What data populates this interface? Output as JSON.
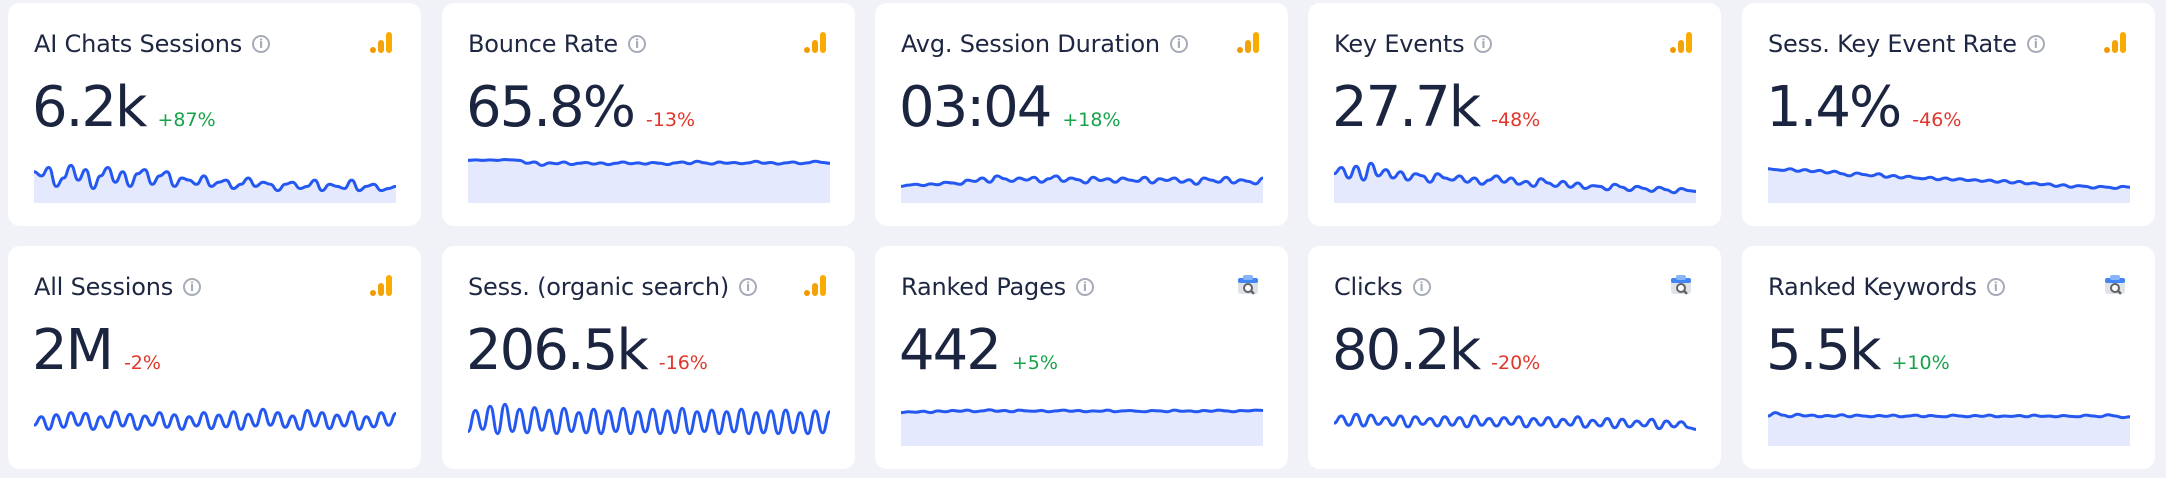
{
  "colors": {
    "background": "#f0f2f7",
    "card": "#ffffff",
    "text": "#1e2742",
    "positive": "#16a34a",
    "negative": "#e0362b",
    "spark_line": "#2458f0",
    "spark_fill": "#e5e9fd",
    "ga_orange": "#f29900",
    "ga_yellow": "#f9ab00"
  },
  "cards": [
    {
      "title": "AI Chats Sessions",
      "value": "6.2k",
      "change": "+87%",
      "trend": "positive",
      "source_icon": "google-analytics-icon",
      "spark": {
        "filled": true,
        "values": [
          0.65,
          0.55,
          0.75,
          0.3,
          0.5,
          0.8,
          0.45,
          0.7,
          0.25,
          0.55,
          0.75,
          0.4,
          0.65,
          0.3,
          0.6,
          0.7,
          0.35,
          0.55,
          0.65,
          0.3,
          0.5,
          0.45,
          0.35,
          0.55,
          0.3,
          0.4,
          0.45,
          0.25,
          0.35,
          0.5,
          0.3,
          0.4,
          0.35,
          0.2,
          0.35,
          0.4,
          0.25,
          0.3,
          0.45,
          0.2,
          0.35,
          0.3,
          0.25,
          0.45,
          0.2,
          0.3,
          0.35,
          0.2,
          0.25,
          0.3
        ]
      }
    },
    {
      "title": "Bounce Rate",
      "value": "65.8%",
      "change": "-13%",
      "trend": "negative",
      "source_icon": "google-analytics-icon",
      "spark": {
        "filled": true,
        "values": [
          0.92,
          0.93,
          0.92,
          0.93,
          0.92,
          0.94,
          0.93,
          0.92,
          0.85,
          0.88,
          0.8,
          0.86,
          0.84,
          0.88,
          0.82,
          0.85,
          0.87,
          0.83,
          0.86,
          0.82,
          0.85,
          0.88,
          0.84,
          0.86,
          0.83,
          0.87,
          0.85,
          0.82,
          0.86,
          0.88,
          0.84,
          0.9,
          0.86,
          0.83,
          0.88,
          0.85,
          0.87,
          0.84,
          0.86,
          0.9,
          0.85,
          0.87,
          0.83,
          0.86,
          0.88,
          0.84,
          0.86,
          0.9,
          0.87,
          0.85
        ]
      }
    },
    {
      "title": "Avg. Session Duration",
      "value": "03:04",
      "change": "+18%",
      "trend": "positive",
      "source_icon": "google-analytics-icon",
      "spark": {
        "filled": true,
        "values": [
          0.3,
          0.33,
          0.35,
          0.32,
          0.36,
          0.34,
          0.4,
          0.38,
          0.35,
          0.45,
          0.42,
          0.5,
          0.4,
          0.55,
          0.48,
          0.42,
          0.5,
          0.45,
          0.52,
          0.4,
          0.48,
          0.55,
          0.42,
          0.5,
          0.46,
          0.38,
          0.52,
          0.44,
          0.48,
          0.4,
          0.5,
          0.45,
          0.42,
          0.52,
          0.38,
          0.48,
          0.44,
          0.5,
          0.4,
          0.46,
          0.35,
          0.5,
          0.45,
          0.4,
          0.52,
          0.38,
          0.46,
          0.42,
          0.36,
          0.5
        ]
      }
    },
    {
      "title": "Key Events",
      "value": "27.7k",
      "change": "-48%",
      "trend": "negative",
      "source_icon": "google-analytics-icon",
      "spark": {
        "filled": true,
        "values": [
          0.6,
          0.75,
          0.5,
          0.78,
          0.45,
          0.85,
          0.55,
          0.7,
          0.5,
          0.65,
          0.45,
          0.6,
          0.55,
          0.4,
          0.6,
          0.5,
          0.45,
          0.55,
          0.4,
          0.5,
          0.35,
          0.45,
          0.55,
          0.4,
          0.5,
          0.35,
          0.42,
          0.3,
          0.48,
          0.38,
          0.3,
          0.42,
          0.28,
          0.38,
          0.25,
          0.32,
          0.3,
          0.22,
          0.35,
          0.28,
          0.2,
          0.3,
          0.25,
          0.18,
          0.28,
          0.22,
          0.15,
          0.25,
          0.2,
          0.18
        ]
      }
    },
    {
      "title": "Sess. Key Event Rate",
      "value": "1.4%",
      "change": "-46%",
      "trend": "negative",
      "source_icon": "google-analytics-icon",
      "spark": {
        "filled": true,
        "values": [
          0.72,
          0.7,
          0.68,
          0.72,
          0.66,
          0.7,
          0.65,
          0.68,
          0.62,
          0.66,
          0.6,
          0.55,
          0.62,
          0.58,
          0.55,
          0.6,
          0.52,
          0.56,
          0.5,
          0.54,
          0.5,
          0.48,
          0.52,
          0.46,
          0.5,
          0.45,
          0.48,
          0.44,
          0.46,
          0.42,
          0.45,
          0.4,
          0.44,
          0.38,
          0.42,
          0.36,
          0.38,
          0.34,
          0.36,
          0.3,
          0.34,
          0.28,
          0.32,
          0.3,
          0.26,
          0.3,
          0.28,
          0.25,
          0.3,
          0.28
        ]
      }
    },
    {
      "title": "All Sessions",
      "value": "2M",
      "change": "-2%",
      "trend": "negative",
      "source_icon": "google-analytics-icon",
      "spark": {
        "filled": false,
        "values": [
          0.4,
          0.6,
          0.3,
          0.65,
          0.35,
          0.7,
          0.4,
          0.68,
          0.3,
          0.6,
          0.35,
          0.72,
          0.38,
          0.66,
          0.3,
          0.62,
          0.4,
          0.7,
          0.35,
          0.65,
          0.3,
          0.6,
          0.38,
          0.7,
          0.32,
          0.64,
          0.36,
          0.72,
          0.3,
          0.66,
          0.38,
          0.78,
          0.4,
          0.7,
          0.35,
          0.62,
          0.3,
          0.75,
          0.38,
          0.7,
          0.32,
          0.64,
          0.38,
          0.72,
          0.3,
          0.6,
          0.36,
          0.7,
          0.4,
          0.68
        ]
      }
    },
    {
      "title": "Sess. (organic search)",
      "value": "206.5k",
      "change": "-16%",
      "trend": "negative",
      "source_icon": "google-analytics-icon",
      "spark": {
        "filled": false,
        "values": [
          0.25,
          0.75,
          0.3,
          0.85,
          0.2,
          0.9,
          0.25,
          0.78,
          0.22,
          0.82,
          0.28,
          0.76,
          0.2,
          0.8,
          0.25,
          0.7,
          0.22,
          0.78,
          0.2,
          0.74,
          0.25,
          0.8,
          0.2,
          0.72,
          0.24,
          0.78,
          0.2,
          0.74,
          0.22,
          0.8,
          0.2,
          0.72,
          0.25,
          0.76,
          0.2,
          0.72,
          0.24,
          0.78,
          0.2,
          0.7,
          0.22,
          0.74,
          0.2,
          0.76,
          0.22,
          0.7,
          0.2,
          0.74,
          0.22,
          0.72
        ]
      }
    },
    {
      "title": "Ranked Pages",
      "value": "442",
      "change": "+5%",
      "trend": "positive",
      "source_icon": "google-search-console-icon",
      "spark": {
        "filled": true,
        "values": [
          0.7,
          0.72,
          0.71,
          0.73,
          0.7,
          0.74,
          0.72,
          0.75,
          0.73,
          0.76,
          0.72,
          0.74,
          0.77,
          0.73,
          0.75,
          0.72,
          0.76,
          0.74,
          0.73,
          0.75,
          0.72,
          0.74,
          0.76,
          0.73,
          0.75,
          0.72,
          0.74,
          0.73,
          0.76,
          0.72,
          0.74,
          0.75,
          0.73,
          0.72,
          0.75,
          0.74,
          0.72,
          0.76,
          0.73,
          0.74,
          0.72,
          0.75,
          0.73,
          0.76,
          0.74,
          0.72,
          0.75,
          0.74,
          0.76,
          0.75
        ]
      }
    },
    {
      "title": "Clicks",
      "value": "80.2k",
      "change": "-20%",
      "trend": "negative",
      "source_icon": "google-search-console-icon",
      "spark": {
        "filled": false,
        "values": [
          0.45,
          0.62,
          0.4,
          0.66,
          0.38,
          0.64,
          0.42,
          0.58,
          0.4,
          0.62,
          0.36,
          0.6,
          0.42,
          0.56,
          0.38,
          0.6,
          0.4,
          0.58,
          0.36,
          0.62,
          0.4,
          0.56,
          0.38,
          0.58,
          0.42,
          0.6,
          0.36,
          0.56,
          0.4,
          0.58,
          0.36,
          0.54,
          0.4,
          0.6,
          0.35,
          0.52,
          0.38,
          0.56,
          0.34,
          0.54,
          0.36,
          0.5,
          0.38,
          0.54,
          0.32,
          0.5,
          0.36,
          0.48,
          0.34,
          0.3
        ]
      }
    },
    {
      "title": "Ranked Keywords",
      "value": "5.5k",
      "change": "+10%",
      "trend": "positive",
      "source_icon": "google-search-console-icon",
      "spark": {
        "filled": true,
        "values": [
          0.62,
          0.7,
          0.64,
          0.6,
          0.66,
          0.62,
          0.64,
          0.6,
          0.63,
          0.61,
          0.65,
          0.6,
          0.64,
          0.62,
          0.6,
          0.63,
          0.61,
          0.64,
          0.6,
          0.62,
          0.64,
          0.6,
          0.63,
          0.61,
          0.6,
          0.64,
          0.62,
          0.6,
          0.63,
          0.61,
          0.64,
          0.6,
          0.62,
          0.61,
          0.63,
          0.6,
          0.64,
          0.61,
          0.62,
          0.6,
          0.63,
          0.61,
          0.6,
          0.64,
          0.62,
          0.6,
          0.65,
          0.62,
          0.58,
          0.6
        ]
      }
    }
  ]
}
